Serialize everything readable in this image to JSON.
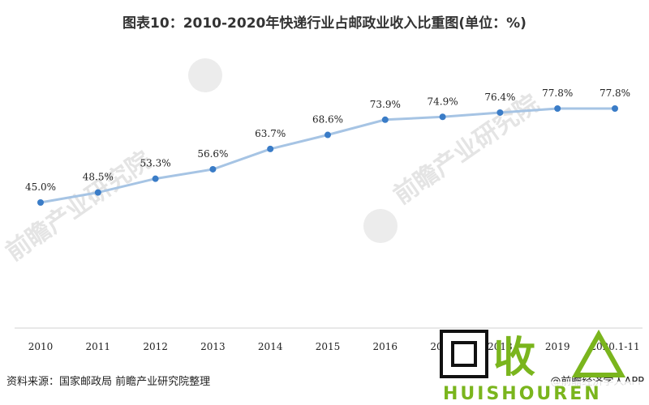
{
  "chart_data": {
    "type": "line",
    "title": "图表10：2010-2020年快递行业占邮政业收入比重图(单位：%)",
    "categories": [
      "2010",
      "2011",
      "2012",
      "2013",
      "2014",
      "2015",
      "2016",
      "2017",
      "2018",
      "2019",
      "2020.1-11"
    ],
    "values": [
      45.0,
      48.5,
      53.3,
      56.6,
      63.7,
      68.6,
      73.9,
      74.9,
      76.4,
      77.8,
      77.8
    ],
    "value_labels": [
      "45.0%",
      "48.5%",
      "53.3%",
      "56.6%",
      "63.7%",
      "68.6%",
      "73.9%",
      "74.9%",
      "76.4%",
      "77.8%",
      "77.8%"
    ],
    "xlabel": "",
    "ylabel": "",
    "grid": false,
    "line_color": "#a6c4e4",
    "marker_color": "#3a7cc7"
  },
  "footer": {
    "source": "资料来源：国家邮政局 前瞻产业研究院整理",
    "credit": "@前瞻经济学人APP"
  },
  "watermark": {
    "text": "前瞻产业研究院",
    "stamp_brand": "回收",
    "stamp_sub": "HUISHOUREN"
  }
}
